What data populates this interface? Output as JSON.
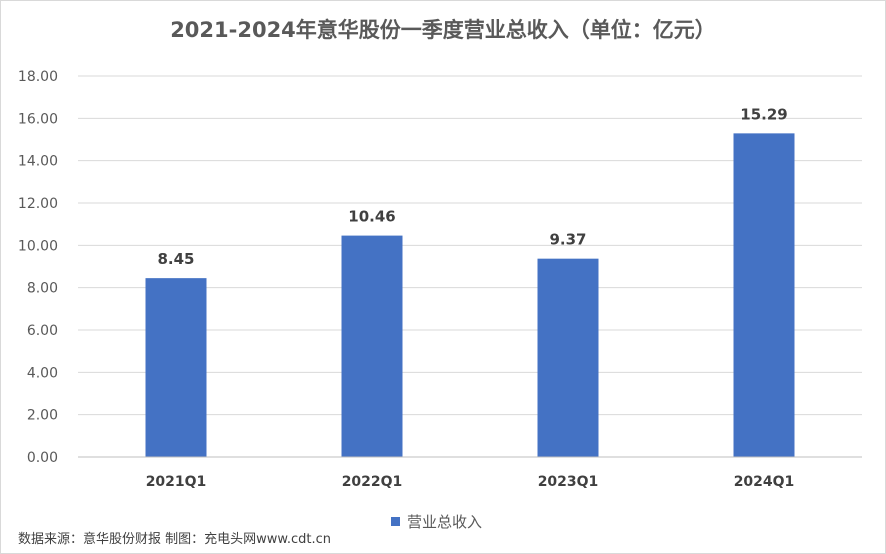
{
  "chart_data": {
    "type": "bar",
    "title": "2021-2024年意华股份一季度营业总收入（单位：亿元）",
    "categories": [
      "2021Q1",
      "2022Q1",
      "2023Q1",
      "2024Q1"
    ],
    "series": [
      {
        "name": "营业总收入",
        "values": [
          8.45,
          10.46,
          9.37,
          15.29
        ]
      }
    ],
    "data_labels": [
      "8.45",
      "10.46",
      "9.37",
      "15.29"
    ],
    "ylim": [
      0,
      18
    ],
    "yticks": [
      "0.00",
      "2.00",
      "4.00",
      "6.00",
      "8.00",
      "10.00",
      "12.00",
      "14.00",
      "16.00",
      "18.00"
    ],
    "grid": true,
    "legend": "bottom",
    "bar_color": "#4472c4",
    "grid_color": "#d9d9d9"
  },
  "footer": {
    "source": "数据来源：意华股份财报  制图：充电头网www.cdt.cn"
  }
}
